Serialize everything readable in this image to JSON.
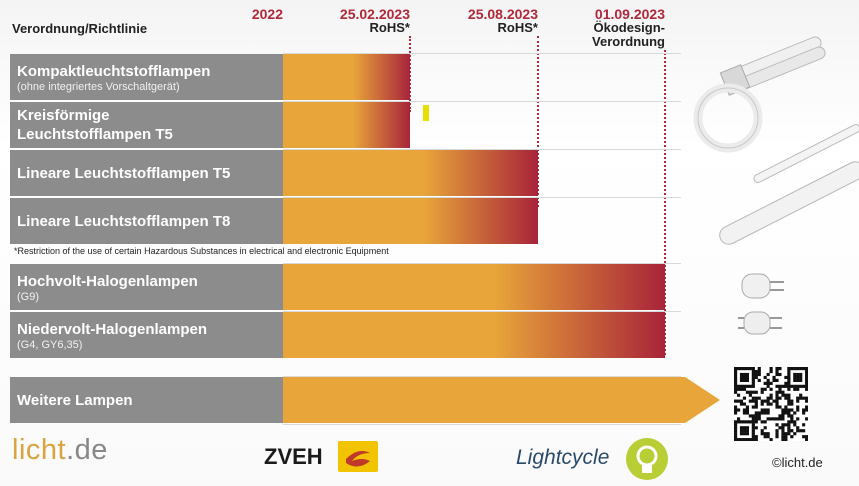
{
  "header": {
    "left_label": "Verordnung/Richtlinie",
    "columns": [
      {
        "date": "2022",
        "sub1": "",
        "sub2": ""
      },
      {
        "date": "25.02.2023",
        "sub1": "RoHS*",
        "sub2": ""
      },
      {
        "date": "25.08.2023",
        "sub1": "RoHS*",
        "sub2": ""
      },
      {
        "date": "01.09.2023",
        "sub1": "Ökodesign-",
        "sub2": "Verordnung"
      }
    ]
  },
  "chart_data": {
    "type": "bar",
    "orientation": "horizontal",
    "start": "2022",
    "milestones": [
      "2022",
      "25.02.2023",
      "25.08.2023",
      "01.09.2023"
    ],
    "rows": [
      {
        "label": "Kompaktleuchtstofflampen",
        "sublabel": "(ohne integriertes Vorschaltgerät)",
        "end": "25.02.2023",
        "regulation": "RoHS*"
      },
      {
        "label": "Kreisförmige",
        "label2": "Leuchtstofflampen T5",
        "sublabel": "",
        "end": "25.02.2023",
        "regulation": "RoHS*"
      },
      {
        "label": "Lineare Leuchtstofflampen T5",
        "sublabel": "",
        "end": "25.08.2023",
        "regulation": "RoHS*"
      },
      {
        "label": "Lineare Leuchtstofflampen T8",
        "sublabel": "",
        "end": "25.08.2023",
        "regulation": "RoHS*"
      },
      {
        "label": "Hochvolt-Halogenlampen",
        "sublabel": "(G9)",
        "end": "01.09.2023",
        "regulation": "Ökodesign-Verordnung"
      },
      {
        "label": "Niedervolt-Halogenlampen",
        "sublabel": "(G4, GY6,35)",
        "end": "01.09.2023",
        "regulation": "Ökodesign-Verordnung"
      },
      {
        "label": "Weitere Lampen",
        "sublabel": "",
        "end": "open",
        "regulation": ""
      }
    ],
    "footnote": "*Restriction of the use of certain Hazardous Substances in electrical and electronic Equipment",
    "colors": {
      "bar_start": "#e8a63a",
      "bar_end": "#a8243a",
      "label_bg": "#8c8c8c",
      "date_text": "#b0283a"
    }
  },
  "footer": {
    "licht_a": "licht",
    "licht_b": ".de",
    "zveh": "ZVEH",
    "lightcycle": "Lightcycle",
    "copyright": "©licht.de"
  },
  "icons": [
    "compact-fluorescent-lamp-icon",
    "circular-fluorescent-lamp-icon",
    "t5-tube-icon",
    "t8-tube-icon",
    "g9-halogen-icon",
    "g4-halogen-icon",
    "qr-code-icon",
    "zveh-logo-icon",
    "lightcycle-bulb-icon"
  ]
}
